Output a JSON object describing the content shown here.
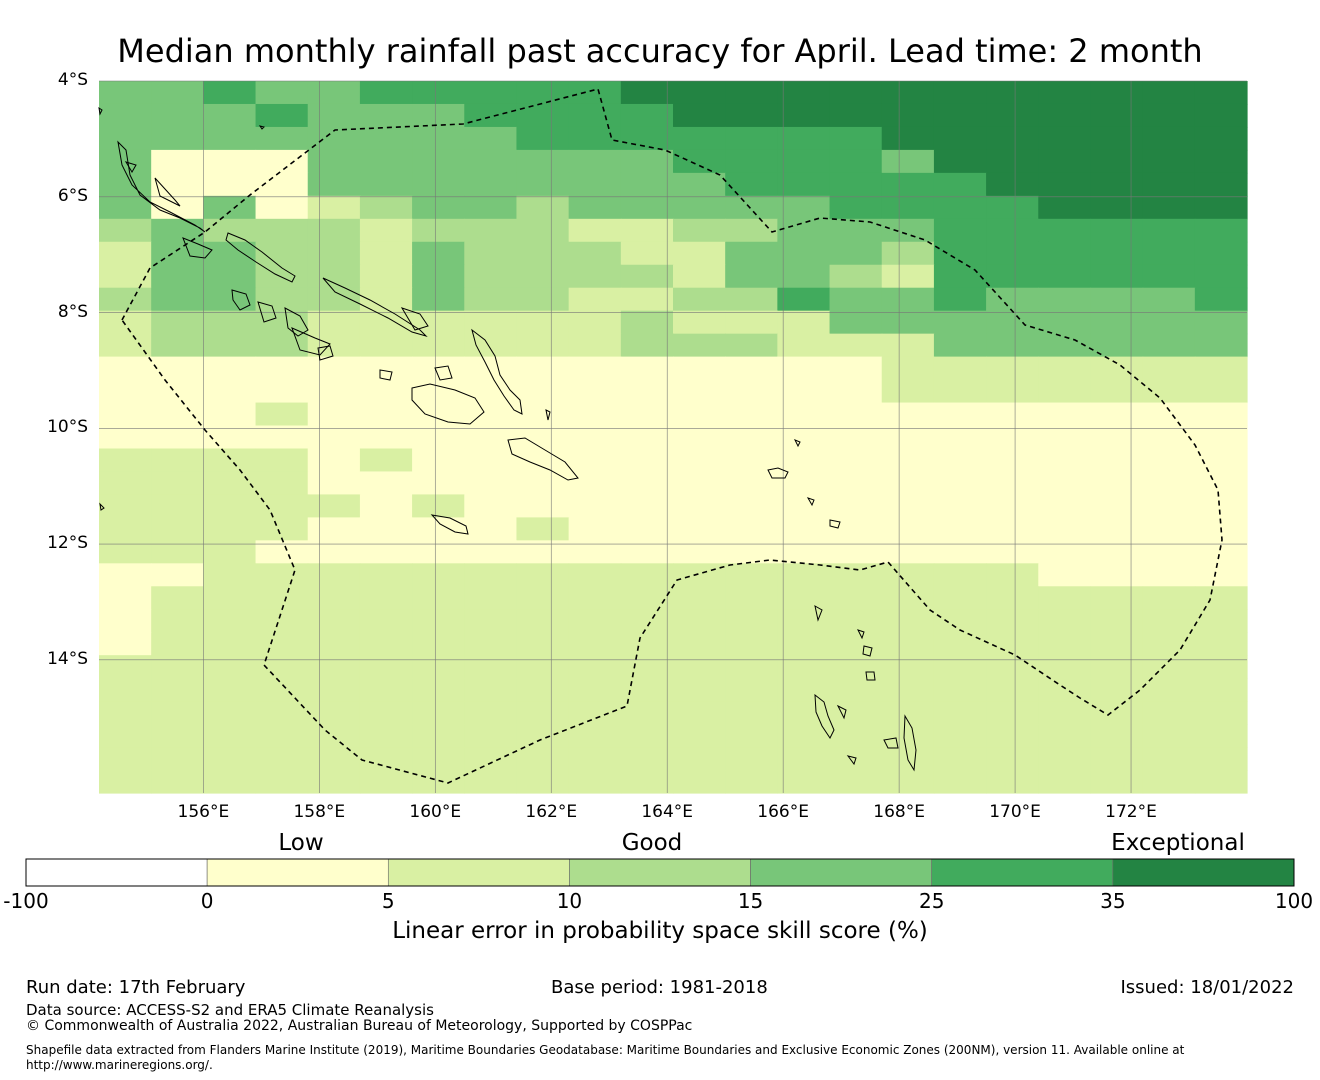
{
  "title": "Median monthly rainfall past accuracy for April. Lead time: 2 month",
  "map": {
    "lat_labels": [
      "4°S",
      "6°S",
      "8°S",
      "10°S",
      "12°S",
      "14°S"
    ],
    "lon_labels": [
      "156°E",
      "158°E",
      "160°E",
      "162°E",
      "164°E",
      "166°E",
      "168°E",
      "170°E",
      "172°E"
    ],
    "lat_range": [
      -16.3,
      -4.0
    ],
    "lon_range": [
      154.2,
      174.0
    ]
  },
  "colorbar": {
    "categories": [
      "Low",
      "Good",
      "Exceptional"
    ],
    "ticks": [
      "-100",
      "0",
      "5",
      "10",
      "15",
      "25",
      "35",
      "100"
    ],
    "colors": [
      "#ffffff",
      "#ffffcc",
      "#d9f0a3",
      "#addd8e",
      "#78c679",
      "#41ab5d",
      "#238443"
    ],
    "label": "Linear error in probability space skill score (%)"
  },
  "skill_grid": {
    "legend": "category index 0=-100..0, 1=0..5, 2=5..10, 3=10..15, 4=15..25, 5=25..35, 6=35..100",
    "rows": [
      "4454455555666666666666",
      "4445444555566666666666",
      "4444444455555556666666",
      "4111444444455554666666",
      "4111444444445555566666",
      "4141234434444455556666",
      "3433323332233444555555",
      "2443324333224443555555",
      "2443324333324432555555",
      "3443324332233544544445",
      "2333222222322244444444",
      "2333222222333222444444",
      "1111111111111112222222",
      "1111111111111112222222",
      "1112111111111111111111",
      "1111111111111111111111",
      "2222121111111111111111",
      "2222111111111111111111",
      "2222212111111111111111",
      "2222111121111111111111",
      "2221111111111111111111",
      "1122222222222222221111",
      "1222222222222222222222",
      "1222222222222222222222",
      "1222222222222222222222",
      "2222222222222222222222",
      "2222222222222222222222",
      "2222222222222222222222",
      "2222222222222222222222",
      "2222222222222222222222",
      "2222222222222222222222"
    ]
  },
  "footer": {
    "run_date": "Run date: 17th February",
    "base_period": "Base period: 1981-2018",
    "issued": "Issued: 18/01/2022",
    "data_source": "Data source: ACCESS-S2 and ERA5 Climate Reanalysis",
    "copyright": "© Commonwealth of Australia 2022, Australian Bureau of Meteorology, Supported by COSPPac",
    "shapefile_line1": "Shapefile data extracted from Flanders Marine Institute (2019), Maritime Boundaries Geodatabase: Maritime Boundaries and Exclusive Economic Zones (200NM), version 11. Available online at",
    "shapefile_line2": "http://www.marineregions.org/."
  }
}
